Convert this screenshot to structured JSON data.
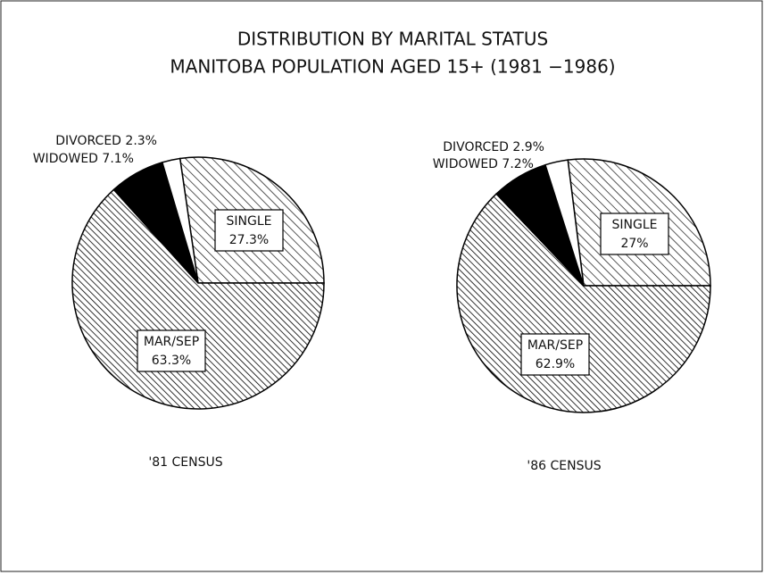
{
  "title": "DISTRIBUTION BY MARITAL STATUS",
  "subtitle": "MANITOBA POPULATION AGED 15+ (1981 −1986)",
  "chart_data": [
    {
      "type": "pie",
      "title": "'81 CENSUS",
      "categories": [
        "SINGLE",
        "MAR/SEP",
        "WIDOWED",
        "DIVORCED"
      ],
      "values": [
        27.3,
        63.3,
        7.1,
        2.3
      ],
      "value_labels": [
        "27.3%",
        "63.3%",
        "7.1%",
        "2.3%"
      ],
      "colors": [
        "#000",
        "#000",
        "#000",
        "#fff"
      ],
      "patterns": [
        "hatch",
        "dense-hatch",
        "solid",
        "solid"
      ]
    },
    {
      "type": "pie",
      "title": "'86 CENSUS",
      "categories": [
        "SINGLE",
        "MAR/SEP",
        "WIDOWED",
        "DIVORCED"
      ],
      "values": [
        27,
        62.9,
        7.2,
        2.9
      ],
      "value_labels": [
        "27%",
        "62.9%",
        "7.2%",
        "2.9%"
      ],
      "colors": [
        "#000",
        "#000",
        "#000",
        "#fff"
      ],
      "patterns": [
        "hatch",
        "dense-hatch",
        "solid",
        "solid"
      ]
    }
  ]
}
